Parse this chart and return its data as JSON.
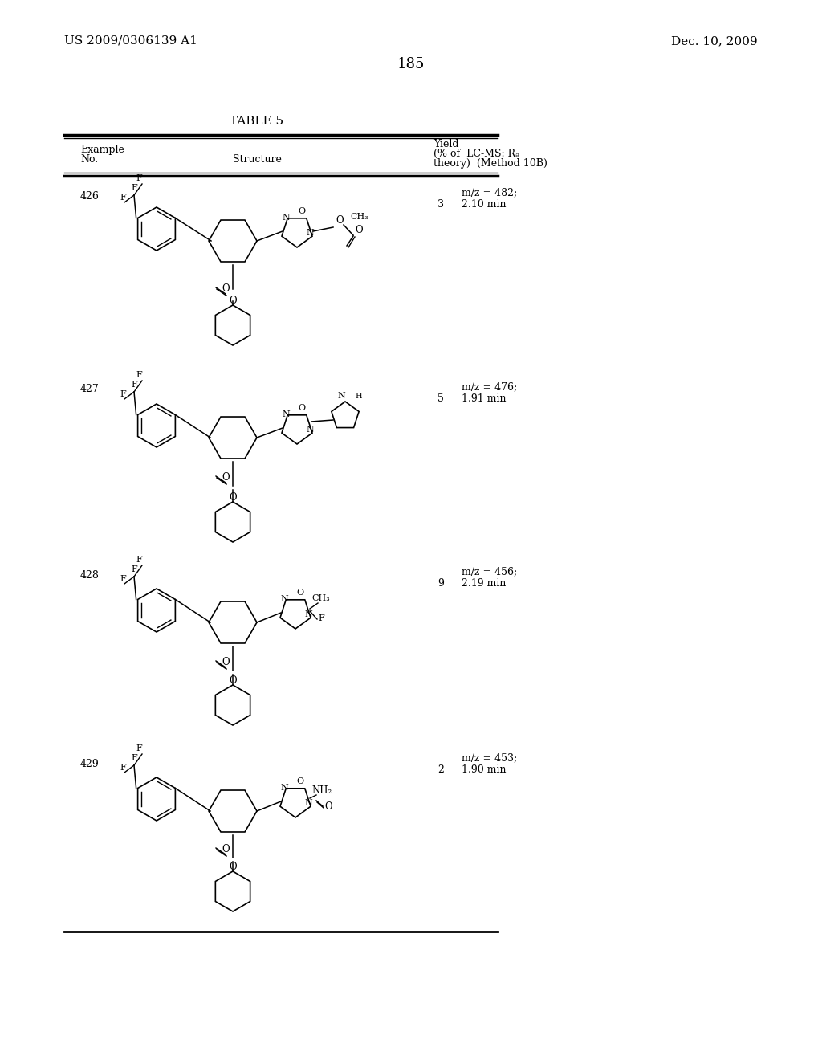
{
  "page_number": "185",
  "header_left": "US 2009/0306139 A1",
  "header_right": "Dec. 10, 2009",
  "table_title": "TABLE 5",
  "col_headers": {
    "example_no": "Example\nNo.",
    "structure": "Structure",
    "yield": "Yield\n(% of\ntheory)",
    "lcms": "LC-MS: Rₔ\n(Method 10B)"
  },
  "rows": [
    {
      "example": "426",
      "yield": "3",
      "lcms": "m/z = 482;\n2.10 min"
    },
    {
      "example": "427",
      "yield": "5",
      "lcms": "m/z = 476;\n1.91 min"
    },
    {
      "example": "428",
      "yield": "9",
      "lcms": "m/z = 456;\n2.19 min"
    },
    {
      "example": "429",
      "yield": "2",
      "lcms": "m/z = 453;\n1.90 min"
    }
  ],
  "bg_color": "#ffffff",
  "text_color": "#000000",
  "line_color": "#000000"
}
